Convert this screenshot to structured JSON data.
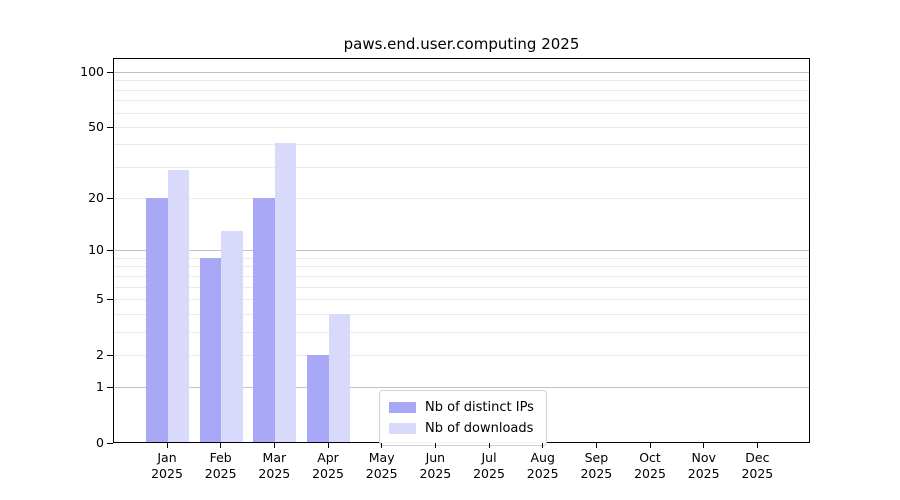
{
  "chart_data": {
    "type": "bar",
    "title": "paws.end.user.computing 2025",
    "scale": "log1p",
    "categories": [
      "Jan",
      "Feb",
      "Mar",
      "Apr",
      "May",
      "Jun",
      "Jul",
      "Aug",
      "Sep",
      "Oct",
      "Nov",
      "Dec"
    ],
    "category_year": "2025",
    "series": [
      {
        "name": "Nb of distinct IPs",
        "color": "#a8a8f6",
        "values": [
          20,
          9,
          20,
          2,
          null,
          null,
          null,
          null,
          null,
          null,
          null,
          null
        ]
      },
      {
        "name": "Nb of downloads",
        "color": "#d9d9fb",
        "values": [
          29,
          13,
          41,
          4,
          null,
          null,
          null,
          null,
          null,
          null,
          null,
          null
        ]
      }
    ],
    "y_ticks": [
      0,
      1,
      2,
      5,
      10,
      20,
      50,
      100
    ],
    "grid_major_values": [
      1,
      10,
      100
    ],
    "grid_minor_values": [
      2,
      3,
      4,
      5,
      6,
      7,
      8,
      9,
      20,
      30,
      40,
      50,
      60,
      70,
      80,
      90
    ],
    "ylim": [
      0,
      119
    ],
    "legend_position": "lower center-left",
    "colors": {
      "grid_major": "#c2c2c2",
      "grid_minor": "#eaeaea",
      "axis": "#000000",
      "background": "#ffffff"
    }
  }
}
